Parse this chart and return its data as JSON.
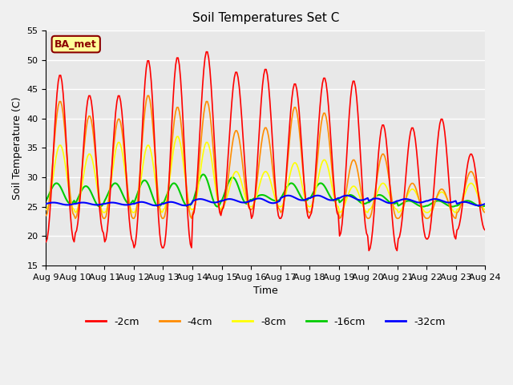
{
  "title": "Soil Temperatures Set C",
  "xlabel": "Time",
  "ylabel": "Soil Temperature (C)",
  "ylim": [
    15,
    55
  ],
  "yticks": [
    15,
    20,
    25,
    30,
    35,
    40,
    45,
    50,
    55
  ],
  "x_labels": [
    "Aug 9",
    "Aug 10",
    "Aug 11",
    "Aug 12",
    "Aug 13",
    "Aug 14",
    "Aug 15",
    "Aug 16",
    "Aug 17",
    "Aug 18",
    "Aug 19",
    "Aug 20",
    "Aug 21",
    "Aug 22",
    "Aug 23",
    "Aug 24"
  ],
  "annotation_text": "BA_met",
  "annotation_color": "#8B0000",
  "annotation_bg": "#FFFF99",
  "colors": {
    "-2cm": "#FF0000",
    "-4cm": "#FF8C00",
    "-8cm": "#FFFF00",
    "-16cm": "#00CC00",
    "-32cm": "#0000FF"
  },
  "background_color": "#E8E8E8",
  "grid_color": "#FFFFFF",
  "legend_labels": [
    "-2cm",
    "-4cm",
    "-8cm",
    "-16cm",
    "-32cm"
  ]
}
